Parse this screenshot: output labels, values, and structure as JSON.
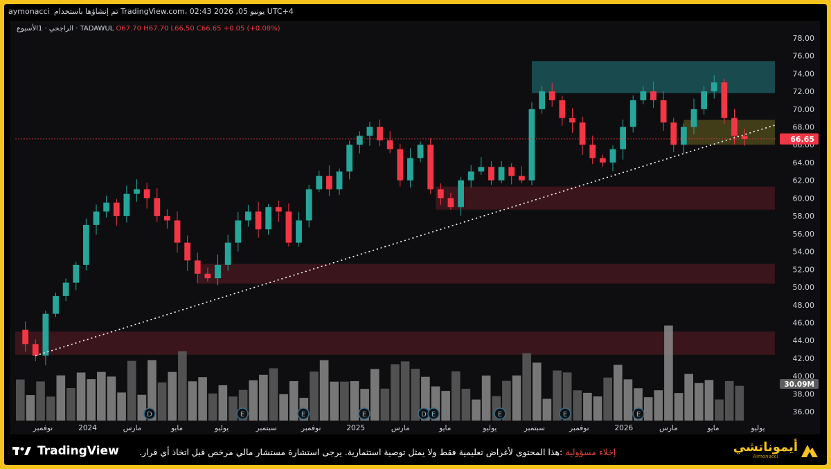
{
  "header": {
    "author": "aymonacci",
    "published": "تم إنشاؤها باستخدام TradingView.com، 02:43 2026 ,05 يونيو UTC+4"
  },
  "legend": {
    "symbol": "الراجحي · 1الأسبوع · TADAWUL",
    "ohlc": "O67.70 H67.70 L66.50 C66.65 +0.05 (+0.08%)"
  },
  "price_tag": "66.65",
  "volume_tag": "30.09M",
  "footer": {
    "logo_text": "TradingView",
    "disclaimer_label": "إخلاء مسؤولية",
    "disclaimer_text": ":هذا المحتوى لأغراض تعليمية فقط ولا يمثل توصية استثمارية. يرجى استشارة مستشار مالي مرخص قبل اتخاذ أي قرار.",
    "brand_name": "أيموناتشي",
    "brand_sub": "Aimonacci"
  },
  "colors": {
    "up": "#26a69a",
    "down": "#f23645",
    "background": "#0e0e10",
    "frame": "#f6c21c",
    "supply_zone": "#1d5f63",
    "pivot_zone": "#6d6420",
    "demand_zone": "#4a1820"
  },
  "chart_data": {
    "type": "candlestick",
    "interval": "1W",
    "y_ticks": [
      "78.00",
      "76.00",
      "74.00",
      "72.00",
      "70.00",
      "68.00",
      "66.00",
      "64.00",
      "62.00",
      "60.00",
      "58.00",
      "56.00",
      "54.00",
      "52.00",
      "50.00",
      "48.00",
      "46.00",
      "44.00",
      "42.00",
      "40.00",
      "38.00",
      "36.00"
    ],
    "x_labels": [
      "نوفمبر",
      "2024",
      "مارس",
      "مايو",
      "يوليو",
      "سبتمبر",
      "نوفمبر",
      "2025",
      "مارس",
      "مايو",
      "يوليو",
      "سبتمبر",
      "نوفمبر",
      "2026",
      "مارس",
      "مايو",
      "يوليو"
    ],
    "ylim": [
      35,
      79
    ],
    "last_price": 66.65,
    "close_path": [
      [
        0,
        45.2
      ],
      [
        4,
        43.6
      ],
      [
        8,
        42.3
      ],
      [
        12,
        47.0
      ],
      [
        16,
        49.0
      ],
      [
        20,
        50.5
      ],
      [
        24,
        52.5
      ],
      [
        28,
        57.0
      ],
      [
        32,
        58.5
      ],
      [
        36,
        59.5
      ],
      [
        40,
        58.0
      ],
      [
        44,
        60.5
      ],
      [
        48,
        61.0
      ],
      [
        52,
        60.0
      ],
      [
        56,
        58.0
      ],
      [
        60,
        57.5
      ],
      [
        64,
        55.0
      ],
      [
        68,
        53.0
      ],
      [
        72,
        51.5
      ],
      [
        76,
        51.0
      ],
      [
        80,
        52.5
      ],
      [
        84,
        55.0
      ],
      [
        88,
        57.5
      ],
      [
        92,
        58.5
      ],
      [
        96,
        56.5
      ],
      [
        100,
        59.0
      ],
      [
        104,
        58.5
      ],
      [
        108,
        55.0
      ],
      [
        112,
        57.5
      ],
      [
        116,
        61.0
      ],
      [
        120,
        62.5
      ],
      [
        124,
        61.0
      ],
      [
        128,
        63.0
      ],
      [
        132,
        66.0
      ],
      [
        136,
        67.0
      ],
      [
        140,
        68.0
      ],
      [
        144,
        66.5
      ],
      [
        148,
        65.5
      ],
      [
        152,
        62.0
      ],
      [
        156,
        64.5
      ],
      [
        160,
        66.0
      ],
      [
        164,
        61.0
      ],
      [
        168,
        60.0
      ],
      [
        172,
        59.0
      ],
      [
        176,
        62.0
      ],
      [
        180,
        63.0
      ],
      [
        184,
        63.5
      ],
      [
        188,
        62.0
      ],
      [
        192,
        63.5
      ],
      [
        196,
        62.5
      ],
      [
        200,
        62.0
      ],
      [
        204,
        70.0
      ],
      [
        208,
        72.0
      ],
      [
        212,
        71.0
      ],
      [
        216,
        69.0
      ],
      [
        220,
        68.5
      ],
      [
        224,
        66.0
      ],
      [
        228,
        64.5
      ],
      [
        232,
        64.0
      ],
      [
        236,
        65.5
      ],
      [
        240,
        68.0
      ],
      [
        244,
        71.0
      ],
      [
        248,
        72.0
      ],
      [
        252,
        71.0
      ],
      [
        256,
        68.5
      ],
      [
        260,
        66.0
      ],
      [
        264,
        68.0
      ],
      [
        268,
        70.0
      ],
      [
        272,
        72.0
      ],
      [
        276,
        73.0
      ],
      [
        280,
        69.0
      ],
      [
        284,
        67.0
      ],
      [
        288,
        66.65
      ]
    ],
    "zones": [
      {
        "name": "supply",
        "y1": 71.8,
        "y2": 75.4,
        "x1": 204,
        "x2": 300
      },
      {
        "name": "pivot",
        "y1": 66.0,
        "y2": 68.8,
        "x1": 264,
        "x2": 300
      },
      {
        "name": "demand",
        "y1": 58.7,
        "y2": 61.3,
        "x1": 166,
        "x2": 300
      },
      {
        "name": "demand",
        "y1": 50.4,
        "y2": 52.6,
        "x1": 72,
        "x2": 300
      },
      {
        "name": "demand",
        "y1": 42.4,
        "y2": 45.0,
        "x1": 0,
        "x2": 300
      }
    ],
    "trendline": [
      [
        8,
        42.3
      ],
      [
        300,
        68.2
      ]
    ],
    "volume_max_label": "30.09M"
  }
}
